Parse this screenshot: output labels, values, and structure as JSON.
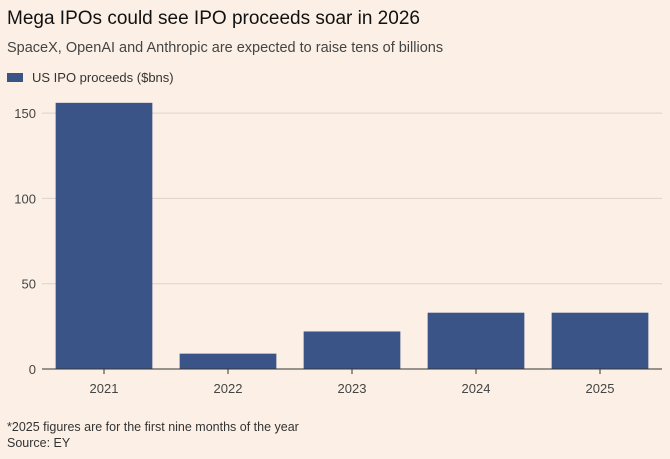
{
  "title": "Mega IPOs could see IPO proceeds soar in 2026",
  "subtitle": "SpaceX, OpenAI and Anthropic are expected to raise tens of billions",
  "footnote": "*2025 figures are for the first nine months of the year",
  "source": "Source: EY",
  "colors": {
    "bar": "#3a5488",
    "background": "#fcf0e6",
    "grid": "#ddd3ca",
    "axis": "#333333"
  },
  "chart_data": {
    "type": "bar",
    "categories": [
      "2021",
      "2022",
      "2023",
      "2024",
      "2025"
    ],
    "series": [
      {
        "name": "US IPO proceeds ($bns)",
        "values": [
          156,
          9,
          22,
          33,
          33
        ]
      }
    ],
    "ylim": [
      0,
      160
    ],
    "yticks": [
      0,
      50,
      100,
      150
    ],
    "xlabel": "",
    "ylabel": "",
    "grid": true,
    "legend": "top-left"
  }
}
